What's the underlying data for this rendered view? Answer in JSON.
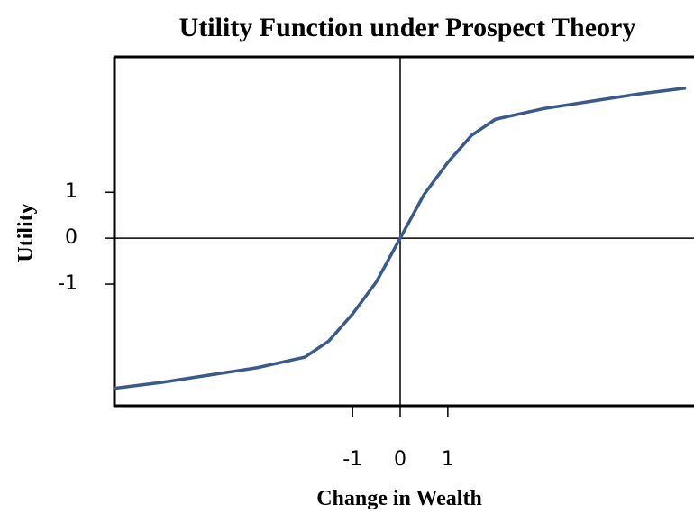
{
  "chart_data": {
    "type": "line",
    "title": "Utility Function under Prospect Theory",
    "x_label": "Change in Wealth",
    "y_label": "Utility",
    "x": [
      -6,
      -5,
      -4,
      -3,
      -2,
      -1.5,
      -1,
      -0.5,
      0,
      0.5,
      1,
      1.5,
      2,
      3,
      4,
      5,
      6
    ],
    "series": [
      {
        "name": "Utility",
        "color": "#3a5a8c",
        "values": [
          -3.27,
          -3.14,
          -2.98,
          -2.82,
          -2.59,
          -2.24,
          -1.65,
          -0.95,
          0,
          0.95,
          1.65,
          2.24,
          2.59,
          2.82,
          2.98,
          3.14,
          3.27
        ]
      }
    ],
    "xlim": [
      -6,
      6.17
    ],
    "ylim": [
      -3.65,
      3.95
    ],
    "xticks": [
      -1,
      0,
      1
    ],
    "yticks": [
      -1,
      0,
      1
    ]
  }
}
